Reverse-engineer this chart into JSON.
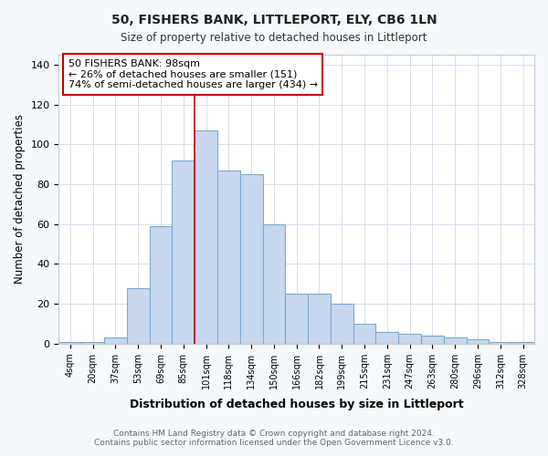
{
  "title1": "50, FISHERS BANK, LITTLEPORT, ELY, CB6 1LN",
  "title2": "Size of property relative to detached houses in Littleport",
  "xlabel": "Distribution of detached houses by size in Littleport",
  "ylabel": "Number of detached properties",
  "categories": [
    "4sqm",
    "20sqm",
    "37sqm",
    "53sqm",
    "69sqm",
    "85sqm",
    "101sqm",
    "118sqm",
    "134sqm",
    "150sqm",
    "166sqm",
    "182sqm",
    "199sqm",
    "215sqm",
    "231sqm",
    "247sqm",
    "263sqm",
    "280sqm",
    "296sqm",
    "312sqm",
    "328sqm"
  ],
  "values": [
    1,
    1,
    3,
    28,
    59,
    92,
    107,
    87,
    85,
    60,
    25,
    25,
    20,
    10,
    6,
    5,
    4,
    3,
    2,
    1,
    1
  ],
  "bar_color": "#c8d8ee",
  "bar_edge_color": "#7aaad0",
  "annotation_text": "50 FISHERS BANK: 98sqm\n← 26% of detached houses are smaller (151)\n74% of semi-detached houses are larger (434) →",
  "vline_color": "#cc0000",
  "box_edge_color": "#cc0000",
  "footer": "Contains HM Land Registry data © Crown copyright and database right 2024.\nContains public sector information licensed under the Open Government Licence v3.0.",
  "ylim": [
    0,
    145
  ],
  "yticks": [
    0,
    20,
    40,
    60,
    80,
    100,
    120,
    140
  ],
  "background_color": "#f5f8fc",
  "plot_background": "#ffffff",
  "grid_color": "#d0d8e8"
}
